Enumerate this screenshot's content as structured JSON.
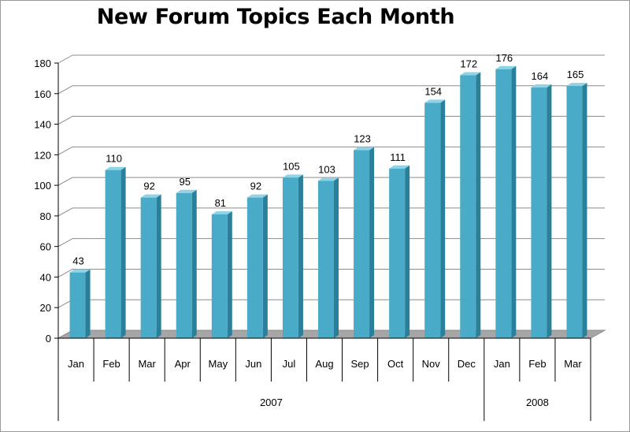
{
  "chart_data": {
    "type": "bar",
    "title": "New Forum Topics Each Month",
    "xlabel": "",
    "ylabel": "",
    "ylim": [
      0,
      180
    ],
    "yticks": [
      0,
      20,
      40,
      60,
      80,
      100,
      120,
      140,
      160,
      180
    ],
    "grid": true,
    "legend": "none",
    "categories": [
      "Jan",
      "Feb",
      "Mar",
      "Apr",
      "May",
      "Jun",
      "Jul",
      "Aug",
      "Sep",
      "Oct",
      "Nov",
      "Dec",
      "Jan",
      "Feb",
      "Mar"
    ],
    "years": [
      {
        "label": "2007",
        "count": 12
      },
      {
        "label": "2008",
        "count": 3
      }
    ],
    "values": [
      43,
      110,
      92,
      95,
      81,
      92,
      105,
      103,
      123,
      111,
      154,
      172,
      176,
      164,
      165
    ],
    "colors": {
      "bar_front": "#4aabc8",
      "bar_side": "#2a7f9a",
      "bar_top": "#8fd3e6",
      "floor": "#a6a6a6",
      "grid": "#8c8c8c"
    }
  }
}
